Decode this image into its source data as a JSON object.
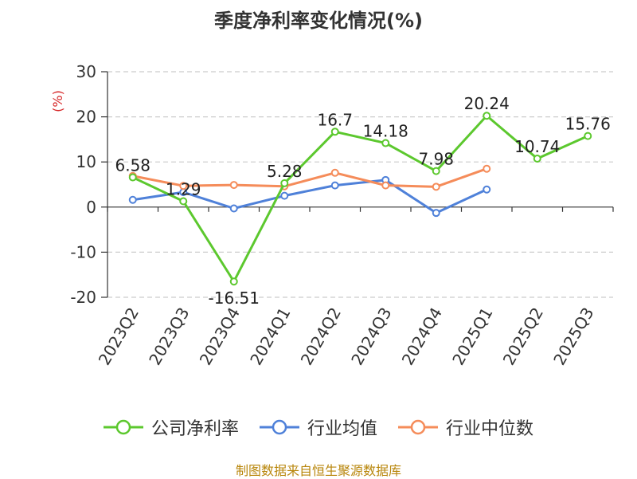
{
  "chart_data": {
    "type": "line",
    "title": "季度净利率变化情况(%)",
    "ylabel": "(%)",
    "categories": [
      "2023Q2",
      "2023Q3",
      "2023Q4",
      "2024Q1",
      "2024Q2",
      "2024Q3",
      "2024Q4",
      "2025Q1",
      "2025Q2",
      "2025Q3"
    ],
    "ylim": [
      -20,
      30
    ],
    "yticks": [
      -20,
      -10,
      0,
      10,
      20,
      30
    ],
    "grid": true,
    "legend_position": "bottom",
    "series": [
      {
        "name": "公司净利率",
        "color": "#5cc82e",
        "values": [
          6.58,
          1.29,
          -16.51,
          5.28,
          16.7,
          14.18,
          7.98,
          20.24,
          10.74,
          15.76
        ],
        "labels": [
          "6.58",
          "1.29",
          "-16.51",
          "5.28",
          "16.7",
          "14.18",
          "7.98",
          "20.24",
          "10.74",
          "15.76"
        ]
      },
      {
        "name": "行业均值",
        "color": "#4f81d9",
        "values": [
          1.6,
          3.3,
          -0.3,
          2.5,
          4.8,
          6.0,
          -1.3,
          3.9,
          null,
          null
        ]
      },
      {
        "name": "行业中位数",
        "color": "#f58c5a",
        "values": [
          6.9,
          4.7,
          4.9,
          4.6,
          7.6,
          4.8,
          4.5,
          8.5,
          null,
          null
        ]
      }
    ]
  },
  "source": "制图数据来自恒生聚源数据库"
}
